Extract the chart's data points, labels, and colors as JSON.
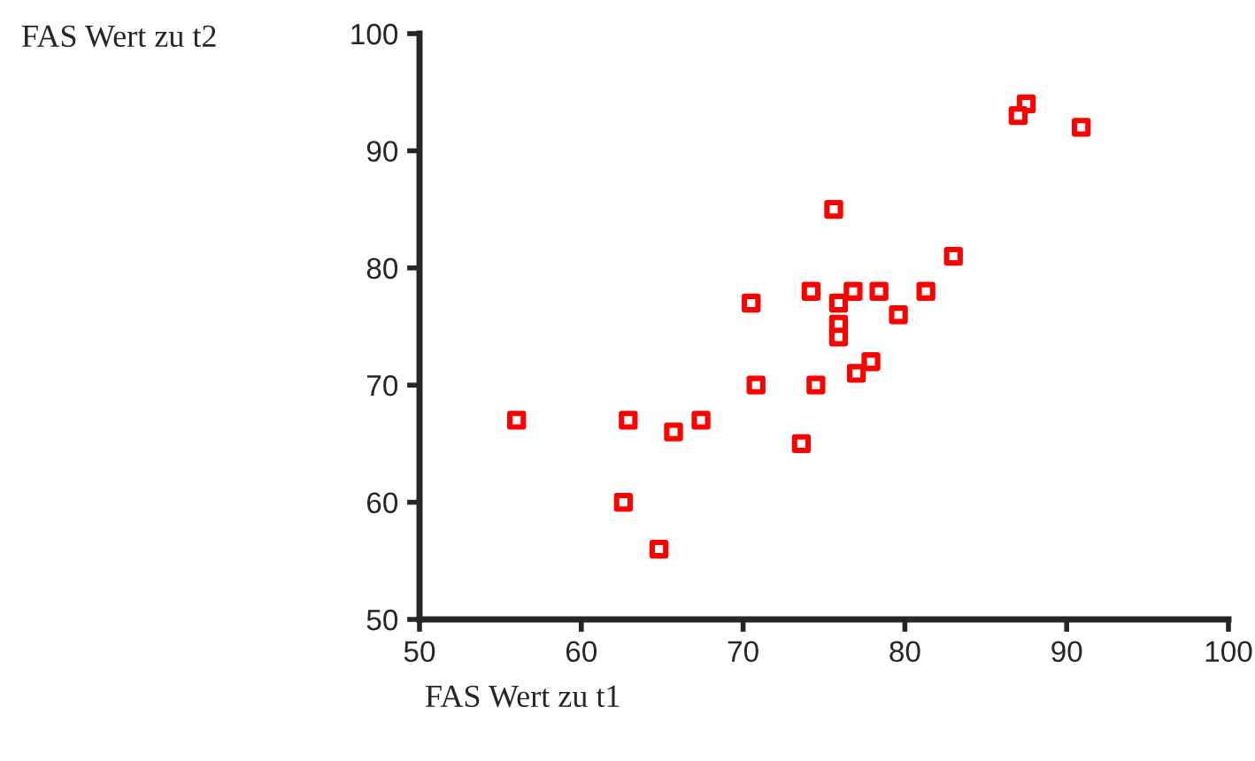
{
  "chart_data": {
    "type": "scatter",
    "xlabel": "FAS Wert zu t1",
    "ylabel": "FAS Wert zu t2",
    "series": [
      {
        "color": "#ff0000",
        "x": [
          56.0,
          62.9,
          62.6,
          65.7,
          67.4,
          64.8,
          70.5,
          70.8,
          73.6,
          74.2,
          74.5,
          75.6,
          87.5,
          87.0,
          90.9,
          83.0,
          76.8,
          78.4,
          81.3,
          75.9,
          79.6,
          75.9,
          75.9,
          77.9,
          77.0
        ],
        "values": [
          67,
          67,
          60,
          66,
          67,
          56,
          77,
          70,
          65,
          78,
          70,
          85,
          94,
          93,
          92,
          81,
          78,
          78,
          78,
          77,
          76,
          75.2,
          74.1,
          72,
          71
        ]
      }
    ],
    "xlim": [
      50,
      100
    ],
    "ylim": [
      50,
      100
    ],
    "xticks": [
      50,
      60,
      70,
      80,
      90,
      100
    ],
    "yticks": [
      50,
      60,
      70,
      80,
      90,
      100
    ],
    "marker": "square",
    "grid": false,
    "legend": false
  }
}
